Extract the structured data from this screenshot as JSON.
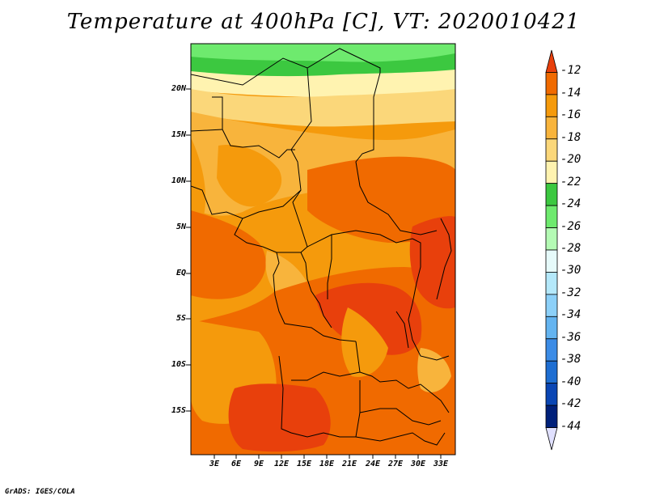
{
  "title": "Temperature at 400hPa [C], VT: 2020010421",
  "credit": "GrADS: IGES/COLA",
  "map": {
    "lat_labels": [
      "20N",
      "15N",
      "10N",
      "5N",
      "EQ",
      "5S",
      "10S",
      "15S"
    ],
    "lon_labels": [
      "3E",
      "6E",
      "9E",
      "12E",
      "15E",
      "18E",
      "21E",
      "24E",
      "27E",
      "30E",
      "33E"
    ],
    "lat_range": [
      -20,
      24
    ],
    "lon_range": [
      0,
      35
    ]
  },
  "colorbar": {
    "labels": [
      "-12",
      "-14",
      "-16",
      "-18",
      "-20",
      "-22",
      "-24",
      "-26",
      "-28",
      "-30",
      "-32",
      "-34",
      "-36",
      "-38",
      "-40",
      "-42",
      "-44"
    ],
    "colors": [
      "#e8400c",
      "#f06a00",
      "#f59a0c",
      "#f8b43c",
      "#fbd77a",
      "#fff3b0",
      "#3cc840",
      "#6eea6e",
      "#b4fab4",
      "#e6fafa",
      "#b4e8fa",
      "#8cd0f8",
      "#64b4f0",
      "#3c8ce6",
      "#1e6ed2",
      "#0a46b4",
      "#00207a",
      "#e0e0ff"
    ]
  }
}
